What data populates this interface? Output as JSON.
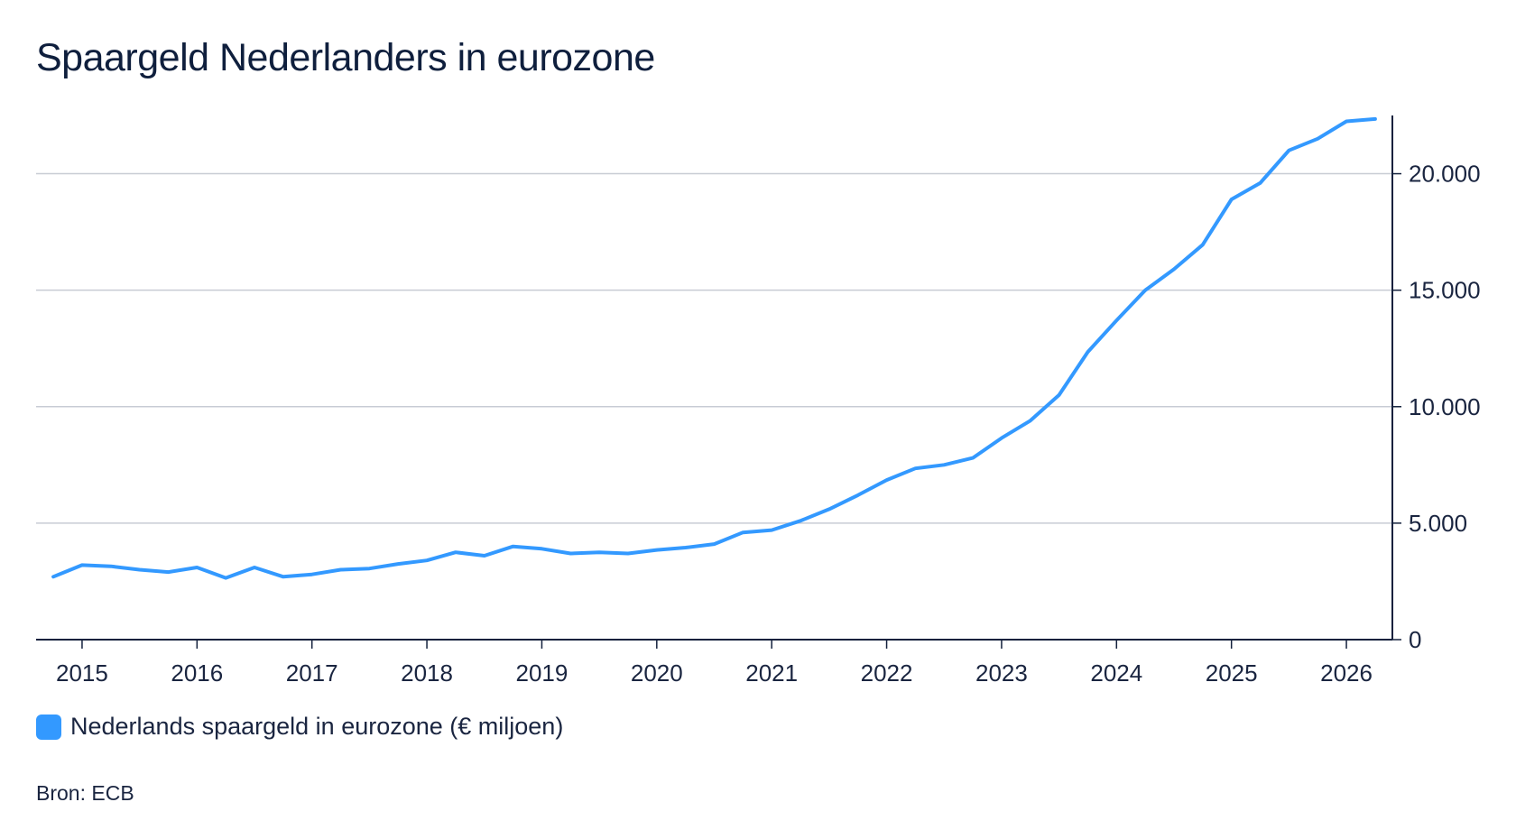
{
  "title": "Spaargeld Nederlanders in eurozone",
  "source": "Bron: ECB",
  "colors": {
    "line": "#3399ff",
    "grid": "#c8ccd4",
    "axis": "#14213d"
  },
  "chart_data": {
    "type": "line",
    "title": "Spaargeld Nederlanders in eurozone",
    "xlabel": "",
    "ylabel": "",
    "xlim": [
      2014.6,
      2026.4
    ],
    "ylim": [
      0,
      22500
    ],
    "y_axis_position": "right",
    "grid": true,
    "legend_position": "bottom-left",
    "x_ticks": [
      2015,
      2016,
      2017,
      2018,
      2019,
      2020,
      2021,
      2022,
      2023,
      2024,
      2025,
      2026
    ],
    "x_tick_labels": [
      "2015",
      "2016",
      "2017",
      "2018",
      "2019",
      "2020",
      "2021",
      "2022",
      "2023",
      "2024",
      "2025",
      "2026"
    ],
    "y_ticks": [
      0,
      5000,
      10000,
      15000,
      20000
    ],
    "y_tick_labels": [
      "0",
      "5.000",
      "10.000",
      "15.000",
      "20.000"
    ],
    "series": [
      {
        "name": "Nederlands spaargeld in eurozone (€ miljoen)",
        "x": [
          2014.75,
          2015.0,
          2015.25,
          2015.5,
          2015.75,
          2016.0,
          2016.25,
          2016.5,
          2016.75,
          2017.0,
          2017.25,
          2017.5,
          2017.75,
          2018.0,
          2018.25,
          2018.5,
          2018.75,
          2019.0,
          2019.25,
          2019.5,
          2019.75,
          2020.0,
          2020.25,
          2020.5,
          2020.75,
          2021.0,
          2021.25,
          2021.5,
          2021.75,
          2022.0,
          2022.25,
          2022.5,
          2022.75,
          2023.0,
          2023.25,
          2023.5,
          2023.75,
          2024.0,
          2024.25,
          2024.5,
          2024.75,
          2025.0,
          2025.25,
          2025.5,
          2025.75,
          2026.0,
          2026.25
        ],
        "y": [
          2700,
          3200,
          3150,
          3000,
          2900,
          3100,
          2650,
          3100,
          2700,
          2800,
          3000,
          3050,
          3250,
          3400,
          3750,
          3600,
          4000,
          3900,
          3700,
          3750,
          3700,
          3850,
          3950,
          4100,
          4600,
          4700,
          5100,
          5600,
          6200,
          6850,
          7350,
          7500,
          7800,
          8650,
          9400,
          10500,
          12350,
          13700,
          15000,
          15900,
          16950,
          18900,
          19600,
          21000,
          21500,
          22250,
          22350
        ]
      }
    ]
  }
}
